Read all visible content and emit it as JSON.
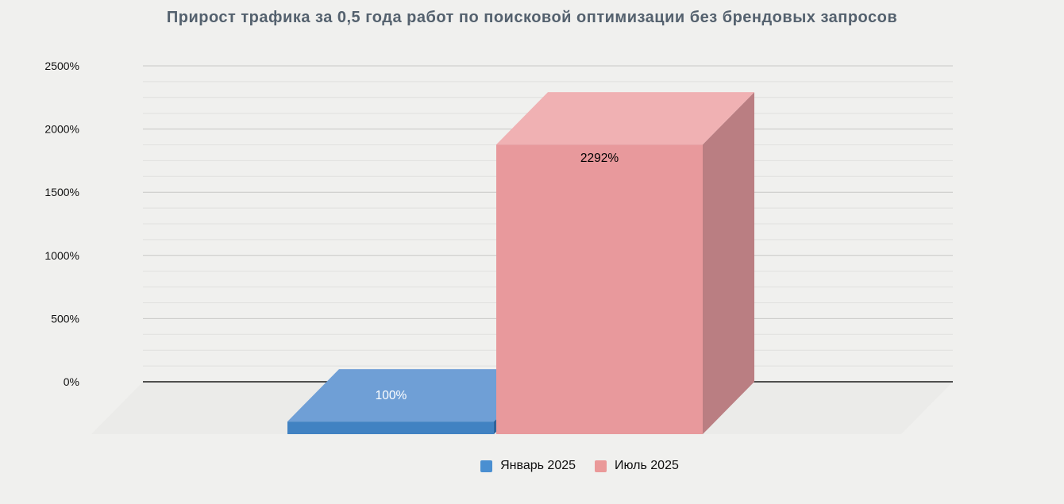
{
  "title": "Прирост трафика за 0,5 года работ по поисковой оптимизации без брендовых запросов",
  "chart_data": {
    "type": "bar",
    "style": "3d",
    "title": "Прирост трафика за 0,5 года работ по поисковой оптимизации без брендовых запросов",
    "categories": [
      "Январь 2025",
      "Июль 2025"
    ],
    "values": [
      100,
      2292
    ],
    "value_labels": [
      "100%",
      "2292%"
    ],
    "series_colors": [
      {
        "front": "#4182c2",
        "top": "#6f9fd6",
        "side": "#30639a",
        "legend": "#4a8fd1",
        "label": "#ffffff"
      },
      {
        "front": "#e8999c",
        "top": "#f0b1b3",
        "side": "#ba7e82",
        "legend": "#ea9999",
        "label": "#000000"
      }
    ],
    "xlabel": "",
    "ylabel": "",
    "y_ticks": [
      "0%",
      "500%",
      "1000%",
      "1500%",
      "2000%",
      "2500%"
    ],
    "y_tick_values": [
      0,
      500,
      1000,
      1500,
      2000,
      2500
    ],
    "ylim": [
      0,
      2500
    ],
    "grid": true,
    "minor_gridline_subdivisions": 4,
    "legend_position": "bottom",
    "background": "#f0f0ee",
    "title_color": "#54616e",
    "axis_line_color": "#1a1a1a",
    "major_gridline_color": "#c8c8c6",
    "minor_gridline_color": "#e0e0de",
    "floor_color": "#ebebe9",
    "tick_label_color": "#111111"
  }
}
